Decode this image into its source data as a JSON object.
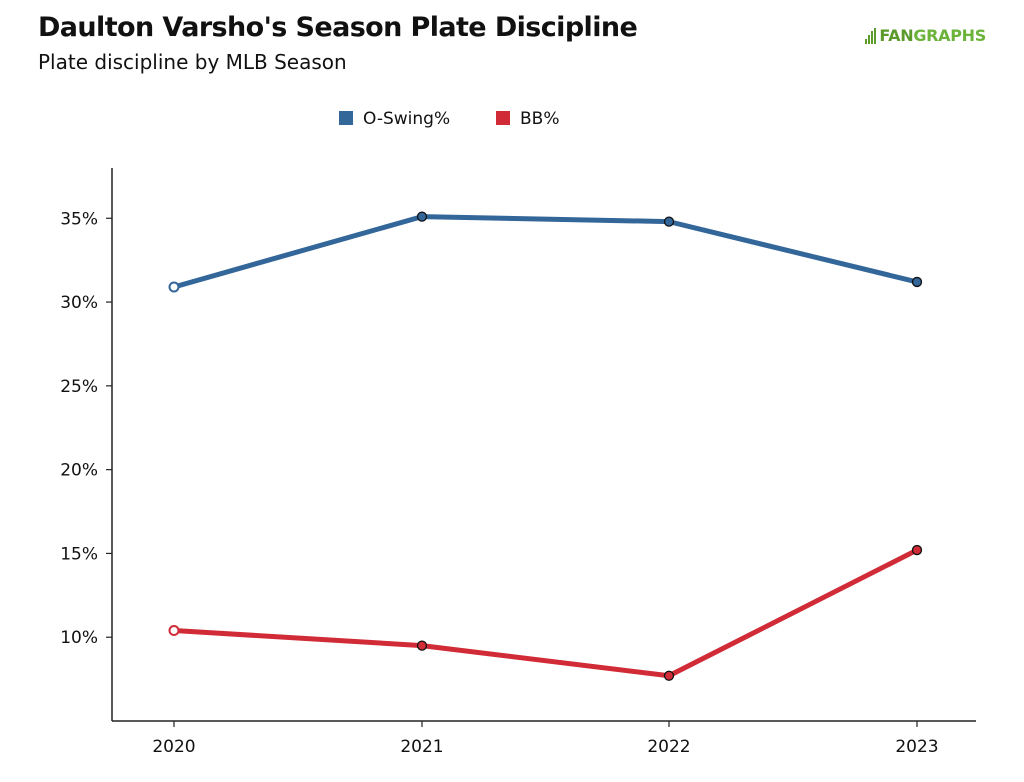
{
  "header": {
    "title": "Daulton Varsho's Season Plate Discipline",
    "subtitle": "Plate discipline by MLB Season",
    "logo_text_fan": "FAN",
    "logo_text_graphs": "GRAPHS",
    "logo_icon": "fangraphs-logo-icon"
  },
  "chart_data": {
    "type": "line",
    "title": "Daulton Varsho's Season Plate Discipline",
    "subtitle": "Plate discipline by MLB Season",
    "xlabel": "",
    "ylabel": "",
    "x": [
      "2020",
      "2021",
      "2022",
      "2023"
    ],
    "ylim": [
      5,
      38
    ],
    "yticks": [
      10,
      15,
      20,
      25,
      30,
      35
    ],
    "ytick_labels": [
      "10%",
      "15%",
      "20%",
      "25%",
      "30%",
      "35%"
    ],
    "grid": false,
    "legend_position": "top-center",
    "series": [
      {
        "name": "O-Swing%",
        "color": "#336699",
        "values": [
          30.9,
          35.1,
          34.8,
          31.2
        ]
      },
      {
        "name": "BB%",
        "color": "#d02b36",
        "values": [
          10.4,
          9.5,
          7.7,
          15.2
        ]
      }
    ],
    "hollow_first_point": true
  }
}
